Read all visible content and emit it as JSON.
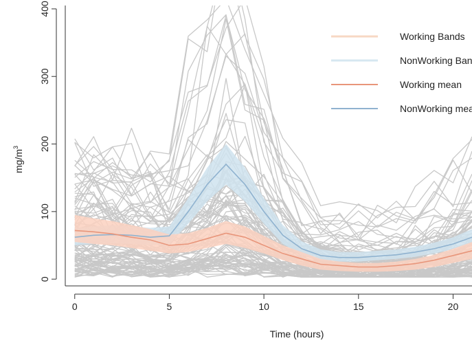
{
  "chart_data": {
    "type": "line",
    "title": "",
    "xlabel": "Time (hours)",
    "ylabel": "mg/m³",
    "ylabel_main": "mg/m",
    "ylabel_sup": "3",
    "xlim": [
      -0.5,
      21
    ],
    "ylim": [
      -10,
      405
    ],
    "xticks": [
      0,
      5,
      10,
      15,
      20
    ],
    "yticks": [
      0,
      100,
      200,
      300,
      400
    ],
    "grid": false,
    "legend_position": "top-right",
    "colors": {
      "background_lines": "#c8c8c8",
      "working_band": "#fbd1c0",
      "nonworking_band": "#cfe3ef",
      "working_mean": "#e8957a",
      "nonworking_mean": "#8fb2cf",
      "axis": "#333333"
    },
    "legend": [
      {
        "label": "Working Bands",
        "color": "#f7d8c4",
        "width": 3
      },
      {
        "label": "NonWorking Bands",
        "color": "#d6e7f1",
        "width": 3
      },
      {
        "label": "Working mean",
        "color": "#e8957a",
        "width": 2
      },
      {
        "label": "NonWorking mean",
        "color": "#8fb2cf",
        "width": 2
      }
    ],
    "x": [
      0,
      1,
      2,
      3,
      4,
      5,
      6,
      7,
      8,
      9,
      10,
      11,
      12,
      13,
      14,
      15,
      16,
      17,
      18,
      19,
      20,
      21
    ],
    "series": [
      {
        "name": "Working mean",
        "values": [
          72,
          70,
          67,
          62,
          58,
          50,
          52,
          60,
          68,
          62,
          50,
          38,
          30,
          22,
          20,
          18,
          18,
          20,
          23,
          28,
          35,
          42
        ]
      },
      {
        "name": "NonWorking mean",
        "values": [
          62,
          65,
          66,
          65,
          62,
          64,
          100,
          140,
          170,
          140,
          100,
          65,
          45,
          35,
          32,
          32,
          34,
          36,
          40,
          45,
          52,
          62
        ]
      },
      {
        "name": "Working Bands",
        "lower": [
          55,
          52,
          50,
          46,
          42,
          38,
          40,
          46,
          52,
          46,
          38,
          28,
          20,
          14,
          12,
          11,
          11,
          12,
          14,
          18,
          24,
          30
        ],
        "upper": [
          95,
          90,
          86,
          80,
          74,
          66,
          68,
          76,
          86,
          78,
          64,
          50,
          40,
          30,
          26,
          24,
          24,
          26,
          30,
          36,
          45,
          55
        ]
      },
      {
        "name": "NonWorking Bands",
        "lower": [
          50,
          52,
          53,
          52,
          50,
          52,
          82,
          115,
          140,
          115,
          82,
          52,
          36,
          28,
          26,
          26,
          28,
          30,
          33,
          38,
          44,
          52
        ],
        "upper": [
          76,
          78,
          80,
          78,
          76,
          78,
          120,
          165,
          200,
          165,
          120,
          80,
          56,
          44,
          40,
          40,
          42,
          44,
          48,
          54,
          62,
          74
        ]
      }
    ]
  }
}
